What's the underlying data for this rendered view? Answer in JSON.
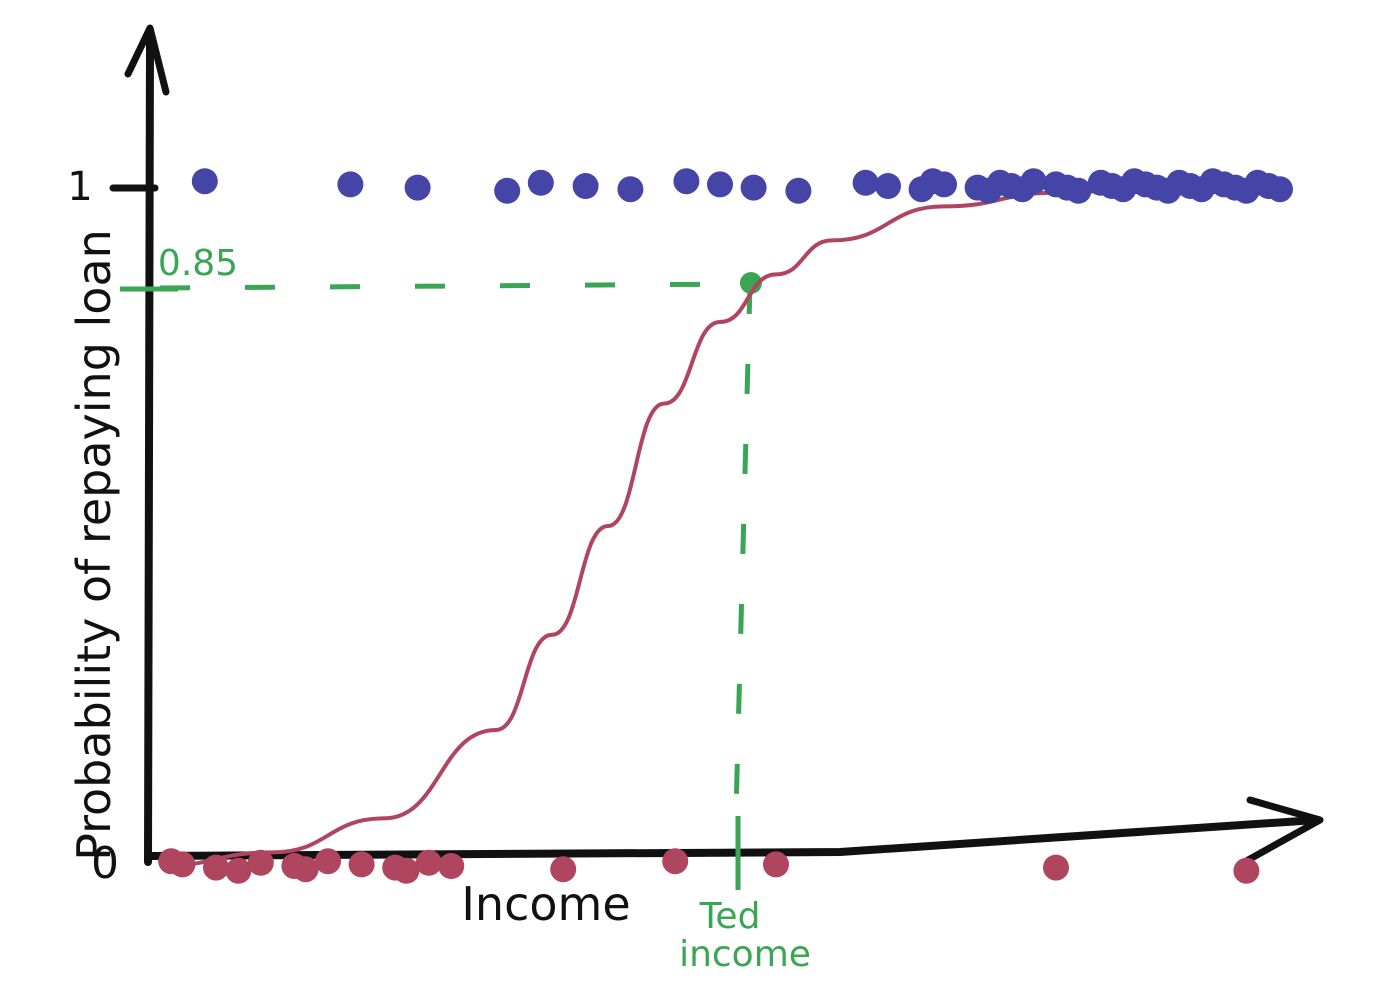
{
  "chart_data": {
    "type": "scatter",
    "title": "",
    "xlabel": "Income",
    "ylabel": "Probability of repaying loan",
    "y_ticks": [
      "0",
      "1"
    ],
    "ylim": [
      0,
      1
    ],
    "xlim": [
      0,
      1
    ],
    "grid": false,
    "colors": {
      "axis": "#111111",
      "repaid": "#4545a8",
      "not_repaid": "#b04560",
      "curve": "#b04560",
      "highlight": "#3aa655"
    },
    "series": [
      {
        "values": [
          [
            0.04,
            1.0
          ],
          [
            0.17,
            1.0
          ],
          [
            0.23,
            1.0
          ],
          [
            0.31,
            1.0
          ],
          [
            0.34,
            1.0
          ],
          [
            0.38,
            1.0
          ],
          [
            0.42,
            1.0
          ],
          [
            0.47,
            1.0
          ],
          [
            0.5,
            1.0
          ],
          [
            0.53,
            1.0
          ],
          [
            0.57,
            1.0
          ],
          [
            0.63,
            1.0
          ],
          [
            0.65,
            1.0
          ],
          [
            0.68,
            1.0
          ],
          [
            0.69,
            1.0
          ],
          [
            0.7,
            1.0
          ],
          [
            0.73,
            1.0
          ],
          [
            0.74,
            1.0
          ],
          [
            0.75,
            1.0
          ],
          [
            0.76,
            1.0
          ],
          [
            0.77,
            1.0
          ],
          [
            0.78,
            1.0
          ],
          [
            0.8,
            1.0
          ],
          [
            0.81,
            1.0
          ],
          [
            0.82,
            1.0
          ],
          [
            0.84,
            1.0
          ],
          [
            0.85,
            1.0
          ],
          [
            0.86,
            1.0
          ],
          [
            0.87,
            1.0
          ],
          [
            0.88,
            1.0
          ],
          [
            0.89,
            1.0
          ],
          [
            0.9,
            1.0
          ],
          [
            0.91,
            1.0
          ],
          [
            0.92,
            1.0
          ],
          [
            0.93,
            1.0
          ],
          [
            0.94,
            1.0
          ],
          [
            0.95,
            1.0
          ],
          [
            0.96,
            1.0
          ],
          [
            0.97,
            1.0
          ],
          [
            0.98,
            1.0
          ],
          [
            0.99,
            1.0
          ],
          [
            1.0,
            1.0
          ]
        ]
      },
      {
        "values": [
          [
            0.01,
            0.0
          ],
          [
            0.02,
            0.0
          ],
          [
            0.05,
            0.0
          ],
          [
            0.07,
            0.0
          ],
          [
            0.09,
            0.0
          ],
          [
            0.12,
            0.0
          ],
          [
            0.13,
            0.0
          ],
          [
            0.15,
            0.0
          ],
          [
            0.18,
            0.0
          ],
          [
            0.21,
            0.0
          ],
          [
            0.22,
            0.0
          ],
          [
            0.24,
            0.0
          ],
          [
            0.26,
            0.0
          ],
          [
            0.36,
            0.0
          ],
          [
            0.46,
            0.0
          ],
          [
            0.55,
            0.0
          ],
          [
            0.8,
            0.0
          ],
          [
            0.97,
            0.0
          ]
        ]
      }
    ],
    "curve": {
      "type": "logistic",
      "x": [
        0.0,
        0.1,
        0.2,
        0.3,
        0.35,
        0.4,
        0.45,
        0.5,
        0.55,
        0.6,
        0.7,
        0.8,
        0.9,
        1.0
      ],
      "y": [
        0.0,
        0.02,
        0.07,
        0.2,
        0.34,
        0.5,
        0.68,
        0.8,
        0.87,
        0.92,
        0.97,
        0.99,
        1.0,
        1.0
      ]
    },
    "highlight": {
      "x": 0.52,
      "y": 0.85,
      "y_label": "0.85",
      "x_label_line1": "Ted",
      "x_label_line2": "income"
    }
  }
}
